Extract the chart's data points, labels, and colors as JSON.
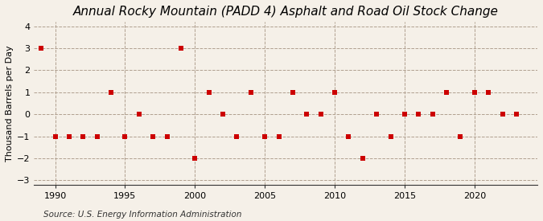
{
  "title": "Annual Rocky Mountain (PADD 4) Asphalt and Road Oil Stock Change",
  "ylabel": "Thousand Barrels per Day",
  "source": "Source: U.S. Energy Information Administration",
  "years": [
    1989,
    1990,
    1991,
    1992,
    1993,
    1994,
    1995,
    1996,
    1997,
    1998,
    1999,
    2000,
    2001,
    2002,
    2003,
    2004,
    2005,
    2006,
    2007,
    2008,
    2009,
    2010,
    2011,
    2012,
    2013,
    2014,
    2015,
    2016,
    2017,
    2018,
    2019,
    2020,
    2021,
    2022,
    2023
  ],
  "values": [
    3,
    -1,
    -1,
    -1,
    -1,
    1,
    -1,
    0,
    -1,
    -1,
    3,
    -2,
    1,
    0,
    -1,
    1,
    -1,
    -1,
    1,
    0,
    0,
    1,
    -1,
    -2,
    0,
    -1,
    0,
    0,
    0,
    1,
    -1,
    1,
    1,
    0,
    0
  ],
  "marker_color": "#cc0000",
  "marker_size": 4,
  "background_color": "#f5f0e8",
  "grid_color": "#b0a090",
  "ylim": [
    -3.2,
    4.2
  ],
  "yticks": [
    -3,
    -2,
    -1,
    0,
    1,
    2,
    3,
    4
  ],
  "xticks": [
    1990,
    1995,
    2000,
    2005,
    2010,
    2015,
    2020
  ],
  "xlim": [
    1988.5,
    2024.5
  ],
  "title_fontsize": 11,
  "label_fontsize": 8,
  "tick_fontsize": 8,
  "source_fontsize": 7.5
}
